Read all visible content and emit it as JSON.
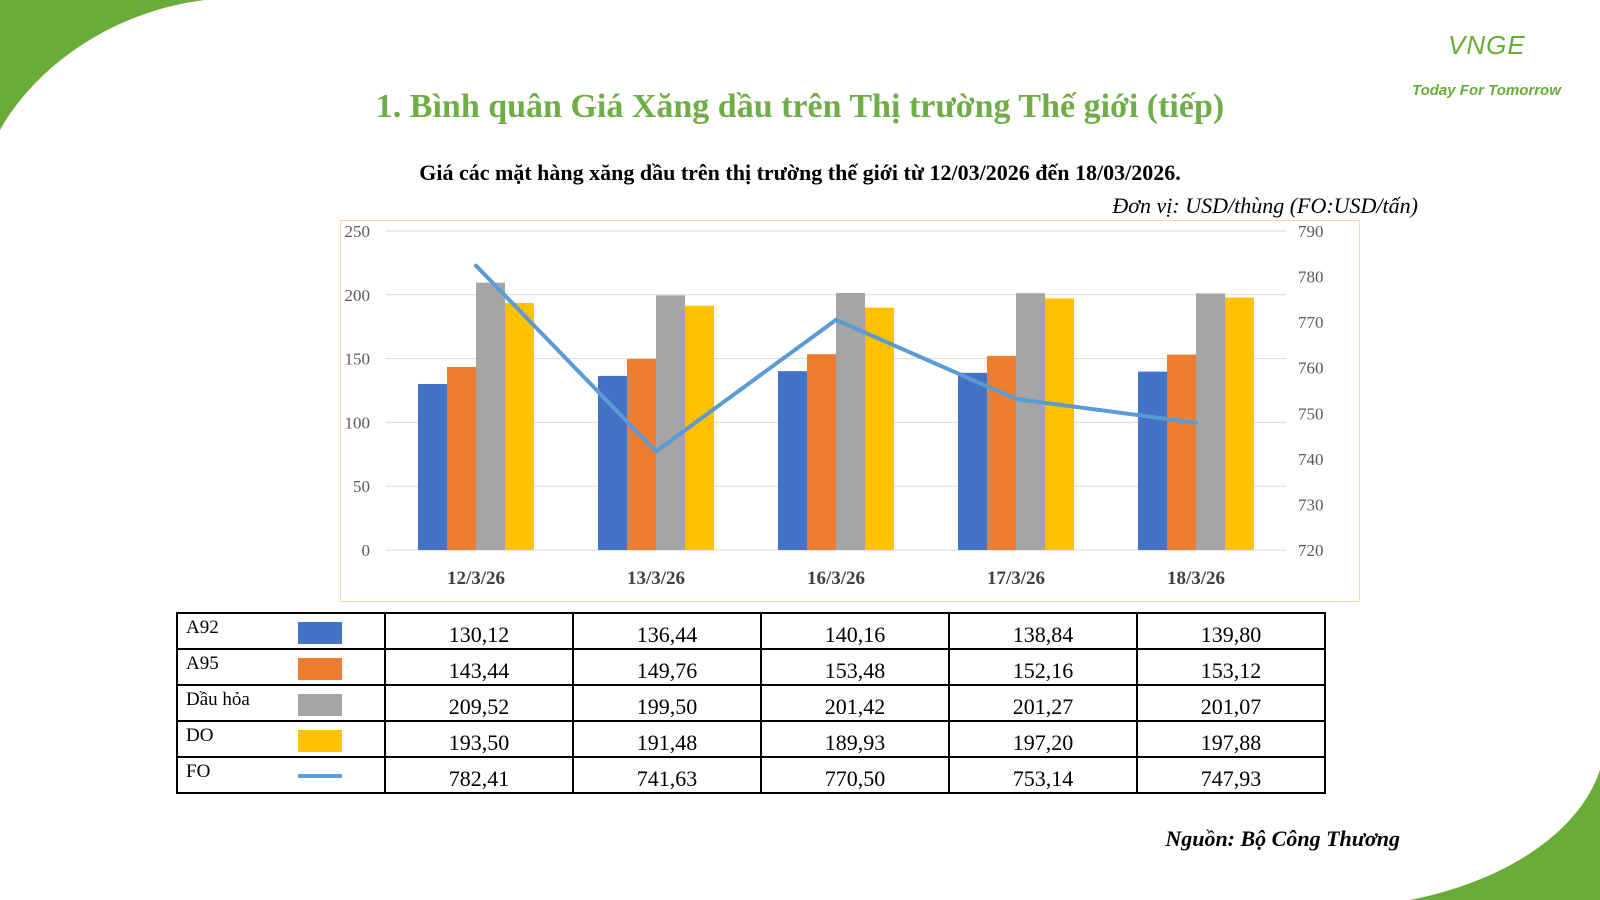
{
  "header": {
    "logo_mark": "VNGE",
    "logo_tagline": "Today For Tomorrow",
    "title": "1. Bình quân Giá Xăng dầu trên Thị trường Thế giới (tiếp)",
    "subtitle": "Giá các mặt hàng xăng dầu trên thị trường thế giới từ 12/03/2026 đến 18/03/2026.",
    "unit": "Đơn vị: USD/thùng (FO:USD/tấn)"
  },
  "footer": {
    "source": "Nguồn: Bộ Công Thương"
  },
  "colors": {
    "A92": "#4472c4",
    "A95": "#ed7d31",
    "Dầu hỏa": "#a5a5a5",
    "DO": "#ffc000",
    "FO": "#5b9bd5",
    "title": "#70ad47"
  },
  "chart_data": {
    "type": "bar",
    "categories": [
      "12/3/26",
      "13/3/26",
      "16/3/26",
      "17/3/26",
      "18/3/26"
    ],
    "series": [
      {
        "name": "A92",
        "type": "bar",
        "axis": "left",
        "values": [
          130.12,
          136.44,
          140.16,
          138.84,
          139.8
        ],
        "labels": [
          "130,12",
          "136,44",
          "140,16",
          "138,84",
          "139,80"
        ]
      },
      {
        "name": "A95",
        "type": "bar",
        "axis": "left",
        "values": [
          143.44,
          149.76,
          153.48,
          152.16,
          153.12
        ],
        "labels": [
          "143,44",
          "149,76",
          "153,48",
          "152,16",
          "153,12"
        ]
      },
      {
        "name": "Dầu hỏa",
        "type": "bar",
        "axis": "left",
        "values": [
          209.52,
          199.5,
          201.42,
          201.27,
          201.07
        ],
        "labels": [
          "209,52",
          "199,50",
          "201,42",
          "201,27",
          "201,07"
        ]
      },
      {
        "name": "DO",
        "type": "bar",
        "axis": "left",
        "values": [
          193.5,
          191.48,
          189.93,
          197.2,
          197.88
        ],
        "labels": [
          "193,50",
          "191,48",
          "189,93",
          "197,20",
          "197,88"
        ]
      },
      {
        "name": "FO",
        "type": "line",
        "axis": "right",
        "values": [
          782.41,
          741.63,
          770.5,
          753.14,
          747.93
        ],
        "labels": [
          "782,41",
          "741,63",
          "770,50",
          "753,14",
          "747,93"
        ]
      }
    ],
    "y_left": {
      "min": 0,
      "max": 250,
      "ticks": [
        "0",
        "50",
        "100",
        "150",
        "200",
        "250"
      ]
    },
    "y_right": {
      "min": 720,
      "max": 790,
      "ticks": [
        "720",
        "730",
        "740",
        "750",
        "760",
        "770",
        "780",
        "790"
      ]
    },
    "grid": true,
    "legend": "data-table-below"
  }
}
